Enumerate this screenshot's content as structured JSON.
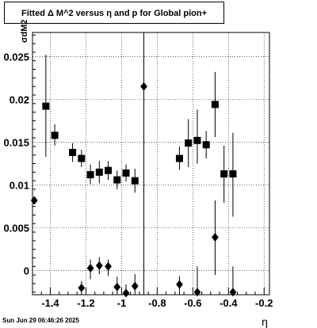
{
  "title": "Fitted Δ M^2 versus η and p for Global pion+",
  "footer": "Sun Jun 29 06:46:26 2025",
  "chart_data": {
    "type": "scatter",
    "title": "Fitted Δ M^2 versus η and p for Global pion+",
    "xlabel": "η",
    "ylabel": "σdM2",
    "xlim": [
      -1.5,
      -0.17
    ],
    "ylim": [
      -0.0028,
      0.0278
    ],
    "grid": true,
    "x_ticks": [
      -1.4,
      -1.2,
      -1.0,
      -0.8,
      -0.6,
      -0.4,
      -0.2
    ],
    "x_tick_labels": [
      "-1.4",
      "-1.2",
      "-1",
      "-0.8",
      "-0.6",
      "-0.4",
      "-0.2"
    ],
    "y_ticks": [
      0,
      0.005,
      0.01,
      0.015,
      0.02,
      0.025
    ],
    "y_tick_labels": [
      "0",
      "0.005",
      "0.01",
      "0.015",
      "0.02",
      "0.025"
    ],
    "series": [
      {
        "marker": "square",
        "points": [
          {
            "x": -1.425,
            "y": 0.0192,
            "lo": 0.0133,
            "hi": 0.0252
          },
          {
            "x": -1.375,
            "y": 0.0158,
            "lo": 0.0146,
            "hi": 0.0171
          },
          {
            "x": -1.275,
            "y": 0.0138,
            "lo": 0.0127,
            "hi": 0.0149
          },
          {
            "x": -1.225,
            "y": 0.0131,
            "lo": 0.0121,
            "hi": 0.0141
          },
          {
            "x": -1.175,
            "y": 0.0112,
            "lo": 0.0101,
            "hi": 0.0124
          },
          {
            "x": -1.125,
            "y": 0.0115,
            "lo": 0.0102,
            "hi": 0.0128
          },
          {
            "x": -1.075,
            "y": 0.0117,
            "lo": 0.0106,
            "hi": 0.0128
          },
          {
            "x": -1.025,
            "y": 0.0106,
            "lo": 0.0095,
            "hi": 0.0117
          },
          {
            "x": -0.975,
            "y": 0.0114,
            "lo": 0.0104,
            "hi": 0.0124
          },
          {
            "x": -0.925,
            "y": 0.0105,
            "lo": 0.0091,
            "hi": 0.0119
          },
          {
            "x": -0.675,
            "y": 0.0131,
            "lo": 0.0118,
            "hi": 0.0145
          },
          {
            "x": -0.625,
            "y": 0.0149,
            "lo": 0.0121,
            "hi": 0.0177
          },
          {
            "x": -0.575,
            "y": 0.0152,
            "lo": 0.0125,
            "hi": 0.0188
          },
          {
            "x": -0.525,
            "y": 0.0147,
            "lo": 0.0131,
            "hi": 0.0163
          },
          {
            "x": -0.475,
            "y": 0.0194,
            "lo": 0.0156,
            "hi": 0.0232
          },
          {
            "x": -0.425,
            "y": 0.0113,
            "lo": 0.0079,
            "hi": 0.0146
          },
          {
            "x": -0.375,
            "y": 0.0113,
            "lo": 0.0063,
            "hi": 0.0161
          }
        ]
      },
      {
        "marker": "diamond",
        "points": [
          {
            "x": -1.49,
            "y": 0.0082,
            "lo": 0.0082,
            "hi": 0.0082
          },
          {
            "x": -1.225,
            "y": -0.002,
            "lo": -0.0028,
            "hi": -0.0012
          },
          {
            "x": -1.175,
            "y": 0.0003,
            "lo": -0.001,
            "hi": 0.0013
          },
          {
            "x": -1.125,
            "y": 0.0006,
            "lo": -0.0004,
            "hi": 0.0016
          },
          {
            "x": -1.075,
            "y": 0.0005,
            "lo": -0.0006,
            "hi": 0.0013
          },
          {
            "x": -1.025,
            "y": -0.0019,
            "lo": -0.0028,
            "hi": -0.0007
          },
          {
            "x": -0.975,
            "y": -0.0026,
            "lo": -0.0028,
            "hi": -0.0016
          },
          {
            "x": -0.925,
            "y": -0.0018,
            "lo": -0.0028,
            "hi": -0.0004
          },
          {
            "x": -0.875,
            "y": 0.0215,
            "lo": -0.0028,
            "hi": 0.0278
          },
          {
            "x": -0.675,
            "y": -0.0016,
            "lo": -0.0028,
            "hi": -0.0006
          },
          {
            "x": -0.575,
            "y": -0.0025,
            "lo": -0.0028,
            "hi": 0.0005
          },
          {
            "x": -0.475,
            "y": 0.0039,
            "lo": -0.0005,
            "hi": 0.0082
          },
          {
            "x": -0.375,
            "y": -0.0025,
            "lo": -0.0028,
            "hi": 0.0005
          }
        ]
      }
    ]
  }
}
